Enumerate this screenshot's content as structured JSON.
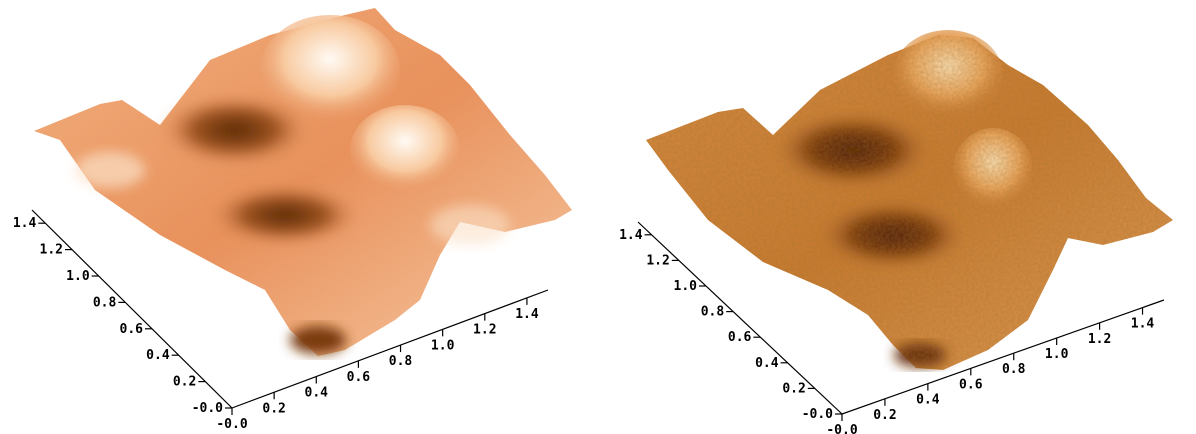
{
  "chart_data": [
    {
      "type": "surface",
      "rendering": "smooth",
      "colormap": [
        "#5a2a06",
        "#a55a1f",
        "#e4915a",
        "#f6c49a",
        "#fff4e8"
      ],
      "x_axis": {
        "ticks": [
          "-0.0",
          "0.2",
          "0.4",
          "0.6",
          "0.8",
          "1.0",
          "1.2",
          "1.4"
        ],
        "range": [
          0,
          1.5
        ]
      },
      "y_axis": {
        "ticks": [
          "-0.0",
          "0.2",
          "0.4",
          "0.6",
          "0.8",
          "1.0",
          "1.2",
          "1.4"
        ],
        "range": [
          0,
          1.5
        ]
      },
      "features": [
        "two peaks",
        "two crater-like depressions",
        "deep pit at front corner"
      ]
    },
    {
      "type": "surface",
      "rendering": "textured",
      "colormap": [
        "#4e2204",
        "#8f4a14",
        "#c97a30",
        "#e8a45c",
        "#f8dcb0"
      ],
      "x_axis": {
        "ticks": [
          "-0.0",
          "0.2",
          "0.4",
          "0.6",
          "0.8",
          "1.0",
          "1.2",
          "1.4"
        ],
        "range": [
          0,
          1.5
        ]
      },
      "y_axis": {
        "ticks": [
          "-0.0",
          "0.2",
          "0.4",
          "0.6",
          "0.8",
          "1.0",
          "1.2",
          "1.4"
        ],
        "range": [
          0,
          1.5
        ]
      },
      "features": [
        "two peaks",
        "two crater-like depressions",
        "deep pit at front corner"
      ]
    }
  ]
}
